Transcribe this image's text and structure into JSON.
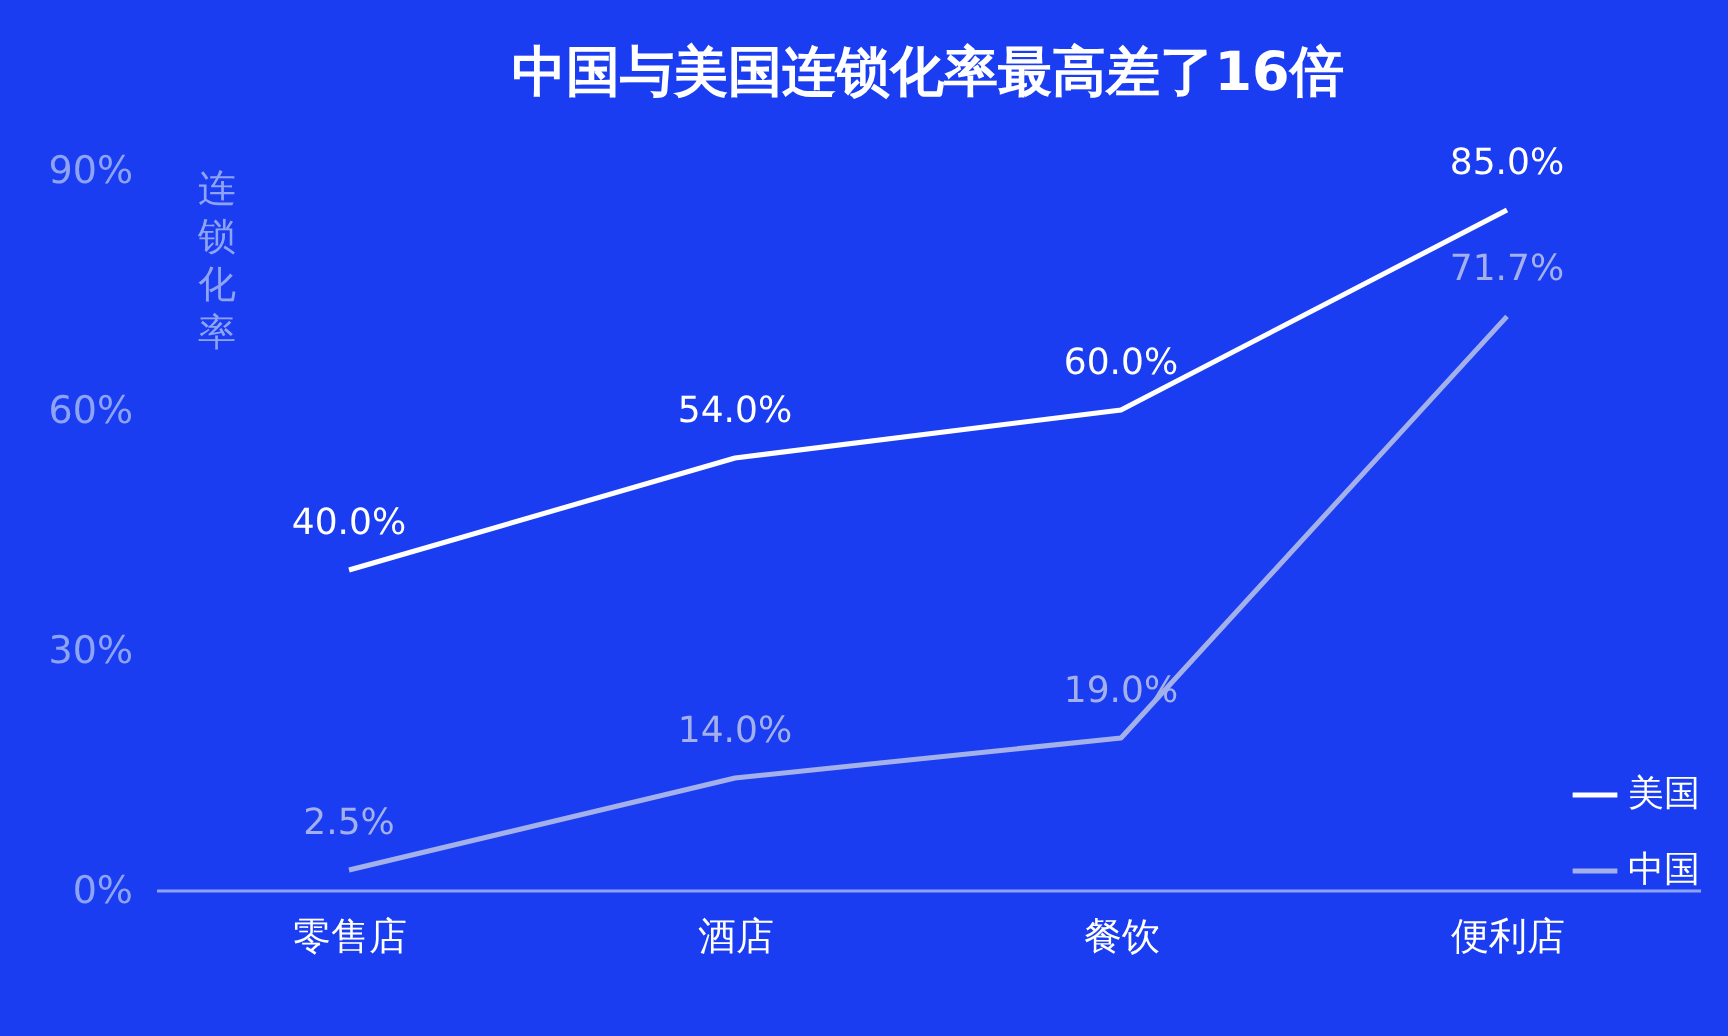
{
  "chart_data": {
    "type": "line",
    "title": "中国与美国连锁化率最高差了16倍",
    "ylabel": "连锁化率",
    "categories": [
      "零售店",
      "酒店",
      "餐饮",
      "便利店"
    ],
    "series": [
      {
        "name": "美国",
        "color": "#ffffff",
        "values": [
          40,
          54,
          60,
          85
        ],
        "value_labels": [
          "40.0%",
          "54.0%",
          "60.0%",
          "85.0%"
        ]
      },
      {
        "name": "中国",
        "color": "#a3b0ea",
        "values": [
          2.5,
          14,
          19,
          71.7
        ],
        "value_labels": [
          "2.5%",
          "14.0%",
          "19.0%",
          "71.7%"
        ]
      }
    ],
    "ylim": [
      0,
      90
    ],
    "yticks": [
      {
        "value": 0,
        "label": "0%"
      },
      {
        "value": 30,
        "label": "30%"
      },
      {
        "value": 60,
        "label": "60%"
      },
      {
        "value": 90,
        "label": "90%"
      }
    ],
    "grid": false,
    "legend": "bottom right",
    "marker": "none",
    "line_style": "solid"
  }
}
